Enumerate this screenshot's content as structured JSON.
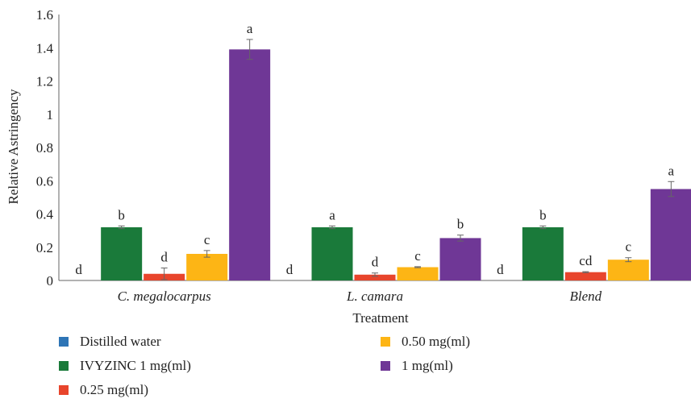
{
  "chart_data": {
    "type": "bar",
    "title": "",
    "xlabel": "Treatment",
    "ylabel": "Relative Astringency",
    "ylim": [
      0,
      1.6
    ],
    "yticks": [
      "0",
      "0.2",
      "0.4",
      "0.6",
      "0.8",
      "1",
      "1.2",
      "1.4",
      "1.6"
    ],
    "categories": [
      "C. megalocarpus",
      "L. camara",
      "Blend"
    ],
    "grid": false,
    "legend_position": "bottom",
    "series": [
      {
        "name": "Distilled water",
        "color": "#2e75b6",
        "values": [
          0,
          0,
          0
        ],
        "errors": [
          0,
          0,
          0
        ],
        "labels": [
          "d",
          "d",
          "d"
        ]
      },
      {
        "name": "IVYZINC 1 mg(ml)",
        "color": "#1a7a3a",
        "values": [
          0.32,
          0.32,
          0.32
        ],
        "errors": [
          0.008,
          0.008,
          0.008
        ],
        "labels": [
          "b",
          "a",
          "b"
        ]
      },
      {
        "name": "0.25 mg(ml)",
        "color": "#e8452c",
        "values": [
          0.04,
          0.035,
          0.05
        ],
        "errors": [
          0.035,
          0.01,
          0.003
        ],
        "labels": [
          "d",
          "d",
          "cd"
        ]
      },
      {
        "name": "0.50 mg(ml)",
        "color": "#fdb515",
        "values": [
          0.16,
          0.08,
          0.125
        ],
        "errors": [
          0.02,
          0.003,
          0.012
        ],
        "labels": [
          "c",
          "c",
          "c"
        ]
      },
      {
        "name": "1 mg(ml)",
        "color": "#6f3796",
        "values": [
          1.39,
          0.255,
          0.55
        ],
        "errors": [
          0.06,
          0.018,
          0.045
        ],
        "labels": [
          "a",
          "b",
          "a"
        ]
      }
    ]
  }
}
